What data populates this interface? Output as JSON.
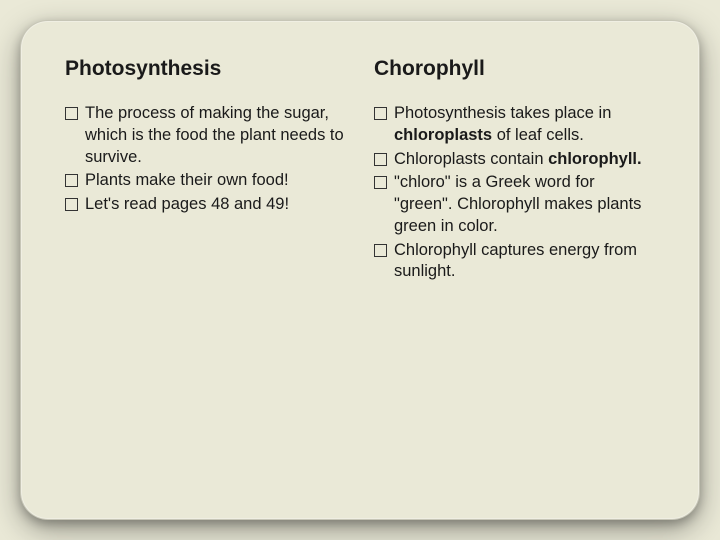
{
  "background_color": "#eae9d7",
  "text_color": "#1a1a1a",
  "title_fontsize": 21,
  "body_fontsize": 16.5,
  "bullet_marker": "hollow-square",
  "columns": [
    {
      "title": "Photosynthesis",
      "items": [
        {
          "runs": [
            {
              "t": "The process of making the sugar, which is the food the plant needs to survive.",
              "b": false
            }
          ]
        },
        {
          "runs": [
            {
              "t": "Plants make their own food!",
              "b": false
            }
          ]
        },
        {
          "runs": [
            {
              "t": "Let's read pages 48 and 49!",
              "b": false
            }
          ]
        }
      ]
    },
    {
      "title": "Chorophyll",
      "items": [
        {
          "runs": [
            {
              "t": "Photosynthesis takes place in ",
              "b": false
            },
            {
              "t": "chloroplasts",
              "b": true
            },
            {
              "t": " of leaf cells.",
              "b": false
            }
          ]
        },
        {
          "runs": [
            {
              "t": "Chloroplasts contain ",
              "b": false
            },
            {
              "t": "chlorophyll.",
              "b": true
            }
          ]
        },
        {
          "runs": [
            {
              "t": "\"chloro\" is a Greek word for \"green\". Chlorophyll makes plants green in color.",
              "b": false
            }
          ]
        },
        {
          "runs": [
            {
              "t": "Chlorophyll captures energy from sunlight.",
              "b": false
            }
          ]
        }
      ]
    }
  ]
}
